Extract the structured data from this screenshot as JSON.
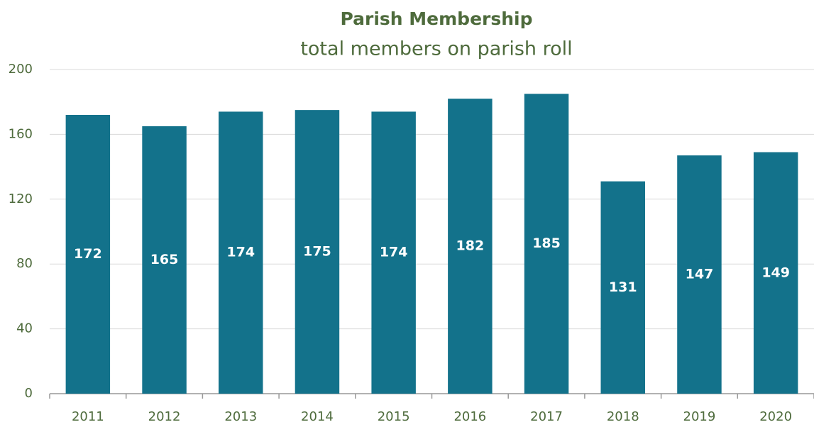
{
  "chart_data": {
    "type": "bar",
    "title": "Parish Membership",
    "subtitle": "total members on parish roll",
    "categories": [
      "2011",
      "2012",
      "2013",
      "2014",
      "2015",
      "2016",
      "2017",
      "2018",
      "2019",
      "2020"
    ],
    "values": [
      172,
      165,
      174,
      175,
      174,
      182,
      185,
      131,
      147,
      149
    ],
    "color": "#13728b",
    "ylim": [
      0,
      200
    ],
    "yticks": [
      0,
      40,
      80,
      120,
      160,
      200
    ],
    "grid": true
  }
}
